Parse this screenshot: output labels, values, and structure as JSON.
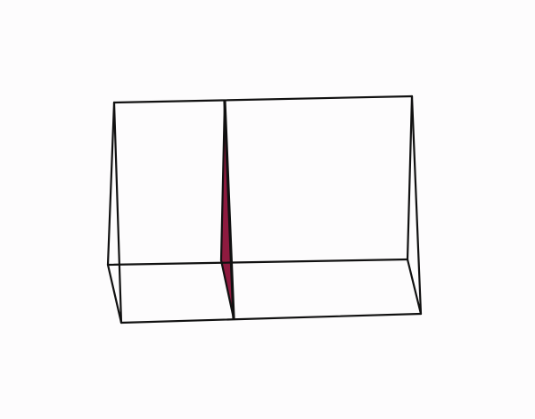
{
  "scene": {
    "description_label": "",
    "colors": {
      "background": "#fdfcfd",
      "edge": "#111111",
      "section_fill": "#8e1a3f"
    },
    "shape": "triangular-prism-wireframe",
    "section": "triangular-cross-section"
  }
}
